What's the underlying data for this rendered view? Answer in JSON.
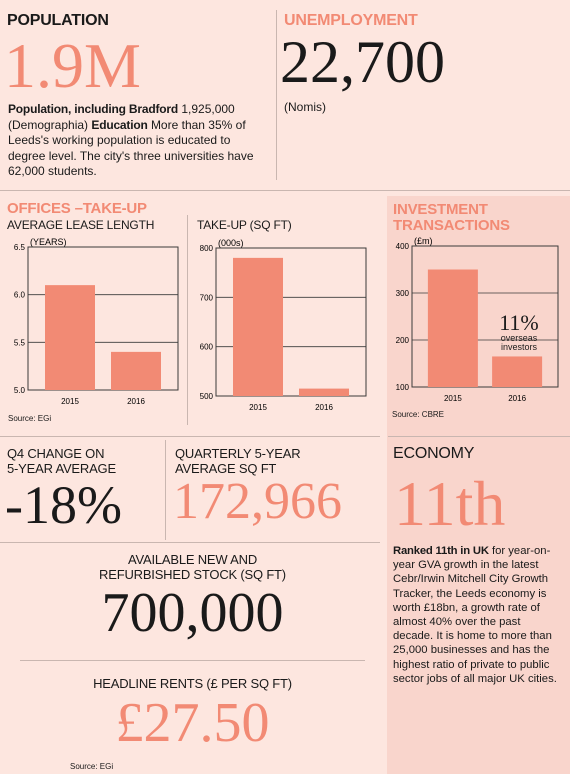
{
  "population": {
    "title": "POPULATION",
    "value": "1.9M",
    "line1_label": "Population, including Bradford",
    "line1_value": "1,925,000",
    "line1_source": "(Demographia)",
    "edu_label": "Education",
    "edu_text": "More than 35% of Leeds's working population is educated to degree level. The city's three universities have 62,000 students."
  },
  "unemployment": {
    "title": "UNEMPLOYMENT",
    "value": "22,700",
    "source": "(Nomis)"
  },
  "offices": {
    "title": "OFFICES –TAKE-UP",
    "lease_title": "AVERAGE LEASE LENGTH",
    "takeup_title": "TAKE-UP (SQ FT)",
    "source": "Source: EGi"
  },
  "investment": {
    "title": "INVESTMENT TRANSACTIONS",
    "annotation_value": "11%",
    "annotation_text1": "overseas",
    "annotation_text2": "investors",
    "source": "Source: CBRE"
  },
  "q4": {
    "title1": "Q4 CHANGE ON",
    "title2": "5-YEAR AVERAGE",
    "value": "-18%"
  },
  "quarterly": {
    "title1": "QUARTERLY 5-YEAR",
    "title2": "AVERAGE SQ FT",
    "value": "172,966"
  },
  "stock": {
    "title1": "AVAILABLE NEW AND",
    "title2": "REFURBISHED STOCK (SQ FT)",
    "value": "700,000"
  },
  "rents": {
    "title": "HEADLINE RENTS (£ PER SQ FT)",
    "value": "£27.50",
    "source": "Source: EGi"
  },
  "economy": {
    "title": "ECONOMY",
    "value": "11th",
    "lead": "Ranked 11th in UK",
    "text": "for year-on-year GVA growth in the latest Cebr/Irwin Mitchell City Growth Tracker, the Leeds economy is worth £18bn, a growth rate of almost 40% over the past decade. It is home to more than 25,000 businesses and has the highest ratio of private to public sector jobs of all major UK cities."
  },
  "colors": {
    "bar": "#f28a74",
    "background": "#fde6df",
    "accent_panel": "#f9d5cc"
  },
  "chart_data": [
    {
      "type": "bar",
      "title": "AVERAGE LEASE LENGTH",
      "ylabel": "(YEARS)",
      "categories": [
        "2015",
        "2016"
      ],
      "values": [
        6.1,
        5.4
      ],
      "ylim": [
        5.0,
        6.5
      ],
      "yticks": [
        "6.5",
        "6.0",
        "5.5",
        "5.0"
      ],
      "grid": true
    },
    {
      "type": "bar",
      "title": "TAKE-UP (SQ FT)",
      "ylabel": "(000s)",
      "categories": [
        "2015",
        "2016"
      ],
      "values": [
        780,
        515
      ],
      "ylim": [
        500,
        800
      ],
      "yticks": [
        "800",
        "700",
        "600",
        "500"
      ],
      "grid": true
    },
    {
      "type": "bar",
      "title": "INVESTMENT TRANSACTIONS",
      "ylabel": "(£m)",
      "categories": [
        "2015",
        "2016"
      ],
      "values": [
        350,
        165
      ],
      "ylim": [
        100,
        400
      ],
      "yticks": [
        "400",
        "300",
        "200",
        "100"
      ],
      "grid": true
    }
  ]
}
